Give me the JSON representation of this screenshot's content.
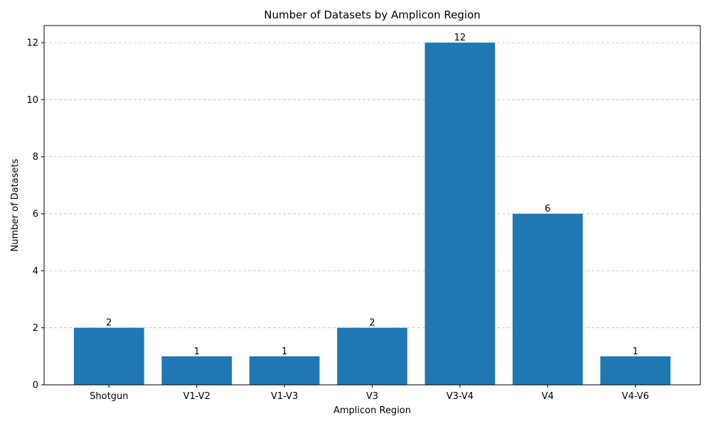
{
  "chart_data": {
    "type": "bar",
    "title": "Number of Datasets by Amplicon Region",
    "xlabel": "Amplicon Region",
    "ylabel": "Number of Datasets",
    "categories": [
      "Shotgun",
      "V1-V2",
      "V1-V3",
      "V3",
      "V3-V4",
      "V4",
      "V4-V6"
    ],
    "values": [
      2,
      1,
      1,
      2,
      12,
      6,
      1
    ],
    "ylim": [
      0,
      12.6
    ],
    "yticks": [
      0,
      2,
      4,
      6,
      8,
      10,
      12
    ],
    "grid": "y-dashed",
    "bar_color": "#1f77b4",
    "data_labels": true
  }
}
